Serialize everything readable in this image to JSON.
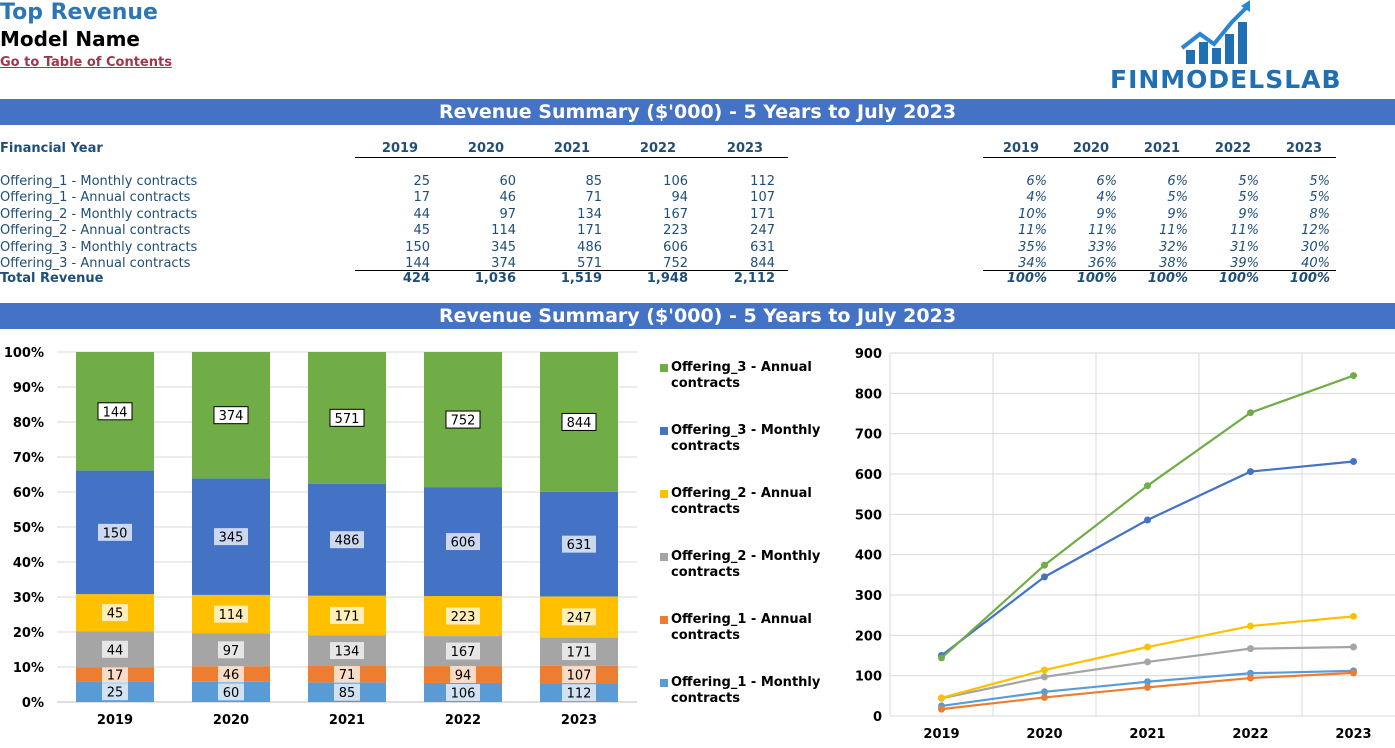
{
  "header": {
    "title": "Top Revenue",
    "model_name": "Model Name",
    "toc_link": "Go to Table of Contents",
    "logo_text": "FINMODELSLAB"
  },
  "banner_top": "Revenue Summary ($'000) - 5 Years to July 2023",
  "banner_chart": "Revenue Summary ($'000) - 5 Years to July 2023",
  "table": {
    "year_label": "Financial Year",
    "years": [
      "2019",
      "2020",
      "2021",
      "2022",
      "2023"
    ],
    "rows": [
      {
        "label": "Offering_1 - Monthly contracts",
        "values": [
          "25",
          "60",
          "85",
          "106",
          "112"
        ],
        "pct": [
          "6%",
          "6%",
          "6%",
          "5%",
          "5%"
        ]
      },
      {
        "label": "Offering_1 - Annual contracts",
        "values": [
          "17",
          "46",
          "71",
          "94",
          "107"
        ],
        "pct": [
          "4%",
          "4%",
          "5%",
          "5%",
          "5%"
        ]
      },
      {
        "label": "Offering_2 - Monthly contracts",
        "values": [
          "44",
          "97",
          "134",
          "167",
          "171"
        ],
        "pct": [
          "10%",
          "9%",
          "9%",
          "9%",
          "8%"
        ]
      },
      {
        "label": "Offering_2 - Annual contracts",
        "values": [
          "45",
          "114",
          "171",
          "223",
          "247"
        ],
        "pct": [
          "11%",
          "11%",
          "11%",
          "11%",
          "12%"
        ]
      },
      {
        "label": "Offering_3 - Monthly contracts",
        "values": [
          "150",
          "345",
          "486",
          "606",
          "631"
        ],
        "pct": [
          "35%",
          "33%",
          "32%",
          "31%",
          "30%"
        ]
      },
      {
        "label": "Offering_3 - Annual contracts",
        "values": [
          "144",
          "374",
          "571",
          "752",
          "844"
        ],
        "pct": [
          "34%",
          "36%",
          "38%",
          "39%",
          "40%"
        ]
      }
    ],
    "total": {
      "label": "Total Revenue",
      "values": [
        "424",
        "1,036",
        "1,519",
        "1,948",
        "2,112"
      ],
      "pct": [
        "100%",
        "100%",
        "100%",
        "100%",
        "100%"
      ]
    }
  },
  "colors": {
    "offering_1_monthly": "#5b9bd5",
    "offering_1_annual": "#ed7d31",
    "offering_2_monthly": "#a5a5a5",
    "offering_2_annual": "#ffc000",
    "offering_3_monthly": "#4472c4",
    "offering_3_annual": "#70ad47",
    "banner": "#4472c4"
  },
  "chart_data": [
    {
      "type": "bar",
      "stacked": "percent",
      "categories": [
        "2019",
        "2020",
        "2021",
        "2022",
        "2023"
      ],
      "ylim": [
        0,
        100
      ],
      "yticks": [
        "0%",
        "10%",
        "20%",
        "30%",
        "40%",
        "50%",
        "60%",
        "70%",
        "80%",
        "90%",
        "100%"
      ],
      "legend_position": "right",
      "series": [
        {
          "name": "Offering_1 - Monthly contracts",
          "values": [
            25,
            60,
            85,
            106,
            112
          ]
        },
        {
          "name": "Offering_1 - Annual contracts",
          "values": [
            17,
            46,
            71,
            94,
            107
          ]
        },
        {
          "name": "Offering_2 - Monthly contracts",
          "values": [
            44,
            97,
            134,
            167,
            171
          ]
        },
        {
          "name": "Offering_2 - Annual contracts",
          "values": [
            45,
            114,
            171,
            223,
            247
          ]
        },
        {
          "name": "Offering_3 - Monthly contracts",
          "values": [
            150,
            345,
            486,
            606,
            631
          ]
        },
        {
          "name": "Offering_3 - Annual contracts",
          "values": [
            144,
            374,
            571,
            752,
            844
          ]
        }
      ],
      "data_labels": true
    },
    {
      "type": "line",
      "categories": [
        "2019",
        "2020",
        "2021",
        "2022",
        "2023"
      ],
      "ylim": [
        0,
        900
      ],
      "yticks": [
        "0",
        "100",
        "200",
        "300",
        "400",
        "500",
        "600",
        "700",
        "800",
        "900"
      ],
      "grid": true,
      "series": [
        {
          "values": [
            25,
            60,
            85,
            106,
            112
          ]
        },
        {
          "values": [
            17,
            46,
            71,
            94,
            107
          ]
        },
        {
          "values": [
            44,
            97,
            134,
            167,
            171
          ]
        },
        {
          "values": [
            45,
            114,
            171,
            223,
            247
          ]
        },
        {
          "values": [
            150,
            345,
            486,
            606,
            631
          ]
        },
        {
          "values": [
            144,
            374,
            571,
            752,
            844
          ]
        }
      ]
    }
  ]
}
